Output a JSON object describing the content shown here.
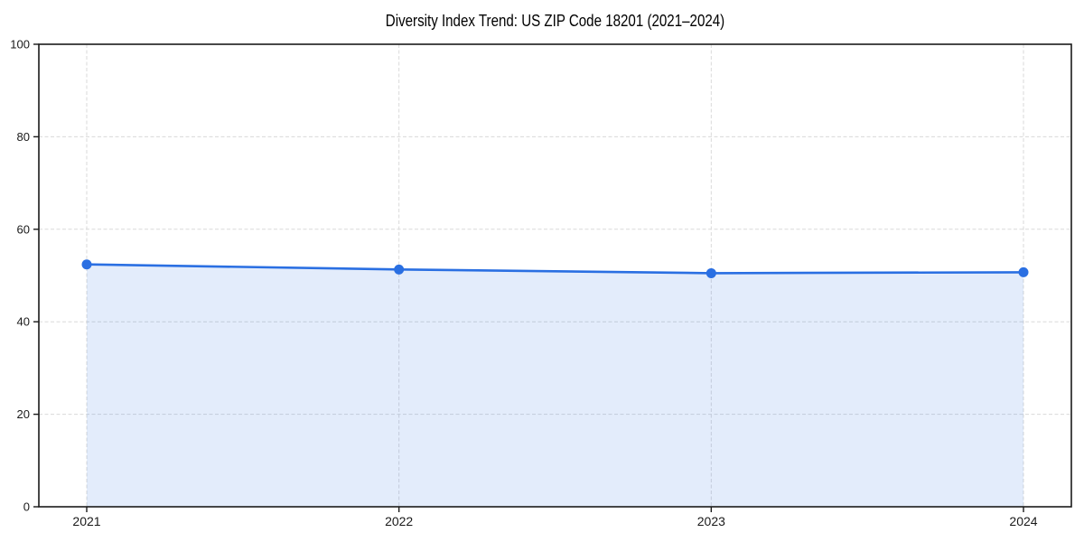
{
  "chart_data": {
    "type": "line",
    "title": "Diversity Index Trend: US ZIP Code 18201 (2021–2024)",
    "categories": [
      "2021",
      "2022",
      "2023",
      "2024"
    ],
    "series": [
      {
        "name": "Diversity Index",
        "values": [
          52.4,
          51.3,
          50.5,
          50.7
        ]
      }
    ],
    "xlabel": "",
    "ylabel": "",
    "ylim": [
      0,
      100
    ],
    "yticks": [
      0,
      20,
      40,
      60,
      80,
      100
    ],
    "grid": {
      "horizontal": true,
      "vertical": true,
      "style": "dashed"
    },
    "legend": "none",
    "area_fill": true,
    "colors": {
      "line": "#2a6fe2",
      "marker": "#2a6fe2",
      "fill": "#2a6fe2",
      "fill_opacity": 0.13,
      "grid": "#dadada",
      "axis": "#1a1a1a",
      "tick_label": "#1a1a1a",
      "background": "#ffffff"
    }
  }
}
